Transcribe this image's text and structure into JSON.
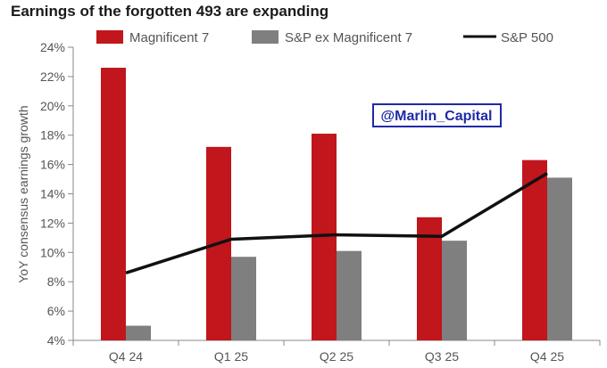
{
  "title": "Earnings of the forgotten 493 are expanding",
  "watermark": "@Marlin_Capital",
  "colors": {
    "mag7": "#c0161c",
    "ex_mag7": "#7f7f7f",
    "sp500": "#111111",
    "watermark": "#1f2aa6"
  },
  "chart_data": {
    "type": "bar",
    "categories": [
      "Q4 24",
      "Q1 25",
      "Q2 25",
      "Q3 25",
      "Q4 25"
    ],
    "series": [
      {
        "name": "Magnificent 7",
        "type": "bar",
        "values": [
          22.6,
          17.2,
          18.1,
          12.4,
          16.3
        ]
      },
      {
        "name": "S&P ex Magnificent 7",
        "type": "bar",
        "values": [
          5.0,
          9.7,
          10.1,
          10.8,
          15.1
        ]
      },
      {
        "name": "S&P 500",
        "type": "line",
        "values": [
          8.6,
          10.9,
          11.2,
          11.1,
          15.4
        ]
      }
    ],
    "ylabel": "YoY consensus earnings growth",
    "xlabel": "",
    "ylim": [
      4,
      24
    ],
    "yticks": [
      "4%",
      "6%",
      "8%",
      "10%",
      "12%",
      "14%",
      "16%",
      "18%",
      "20%",
      "22%",
      "24%"
    ],
    "grid": false,
    "legend_position": "top"
  }
}
